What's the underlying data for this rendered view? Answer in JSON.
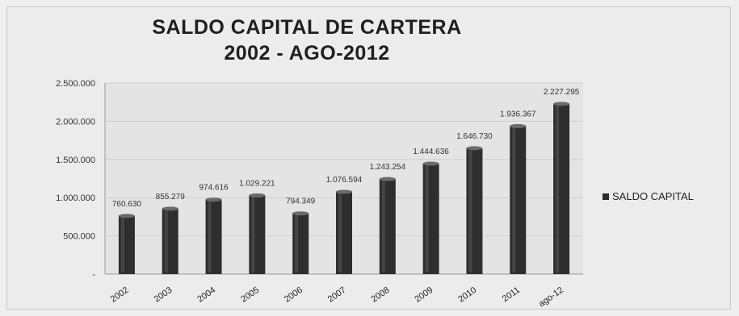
{
  "chart_data": {
    "type": "bar",
    "title": [
      "SALDO CAPITAL DE CARTERA",
      "2002 - AGO-2012"
    ],
    "categories": [
      "2002",
      "2003",
      "2004",
      "2005",
      "2006",
      "2007",
      "2008",
      "2009",
      "2010",
      "2011",
      "ago-12"
    ],
    "series": [
      {
        "name": "SALDO CAPITAL",
        "values": [
          760630,
          855279,
          974616,
          1029221,
          794349,
          1076594,
          1243254,
          1444636,
          1646730,
          1936367,
          2227295
        ],
        "value_labels": [
          "760.630",
          "855.279",
          "974.616",
          "1.029.221",
          "794.349",
          "1.076.594",
          "1.243.254",
          "1.444.636",
          "1.646.730",
          "1.936.367",
          "2.227.295"
        ],
        "color": "#2e2e2e"
      }
    ],
    "ylim": [
      0,
      2500000
    ],
    "yticks": [
      0,
      500000,
      1000000,
      1500000,
      2000000,
      2500000
    ],
    "ytick_labels": [
      "-",
      "500.000",
      "1.000.000",
      "1.500.000",
      "2.000.000",
      "2.500.000"
    ],
    "grid": true,
    "legend_position": "right"
  }
}
